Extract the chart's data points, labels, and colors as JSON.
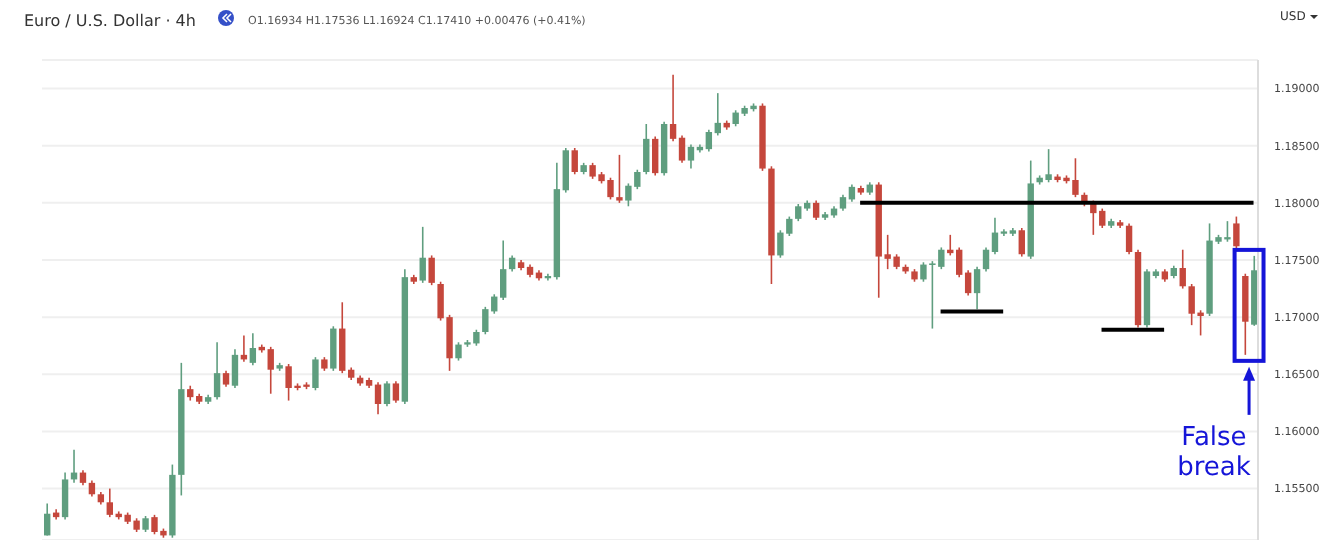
{
  "chart_data": {
    "type": "candlestick",
    "title": "Euro / U.S. Dollar · 4h",
    "ylabel": "USD",
    "annotations": [
      "O1.16934 H1.17536 L1.16924 C1.17410 +0.00476 (+0.41%)",
      "False break"
    ],
    "categories": [
      null,
      null,
      null,
      null,
      null,
      null,
      null,
      null,
      null,
      null,
      null,
      null,
      null,
      null,
      null,
      null,
      null,
      null,
      null,
      null,
      null,
      null,
      null,
      null,
      null,
      null,
      null,
      null,
      null,
      null,
      null,
      null,
      null,
      null,
      null,
      null,
      null,
      null,
      null,
      null,
      null,
      null,
      null,
      null,
      null,
      null,
      null,
      null,
      null,
      null,
      null,
      null,
      null,
      null,
      null,
      null,
      null,
      null,
      null,
      null,
      null,
      null,
      null,
      null,
      null,
      null,
      null,
      null,
      null,
      null,
      null,
      null,
      null,
      null,
      null,
      null,
      null,
      null,
      null,
      null,
      null,
      null,
      null,
      null,
      null,
      null,
      null,
      null,
      null,
      null,
      null,
      null,
      null,
      null,
      null,
      null,
      null,
      null,
      null,
      null,
      null,
      null,
      null,
      null,
      null,
      null,
      null,
      null,
      null,
      null,
      null,
      null,
      null,
      null,
      null,
      null,
      null,
      null,
      null,
      null,
      null,
      null,
      null,
      null,
      null,
      null,
      null,
      null,
      null,
      null,
      null,
      null,
      null,
      null,
      null,
      null
    ],
    "ohlc": [
      [
        1.1509,
        1.1537,
        1.1509,
        1.1528
      ],
      [
        1.1529,
        1.1532,
        1.1523,
        1.1525
      ],
      [
        1.1525,
        1.1564,
        1.1523,
        1.1558
      ],
      [
        1.1558,
        1.1584,
        1.1555,
        1.1564
      ],
      [
        1.1564,
        1.1566,
        1.1553,
        1.1555
      ],
      [
        1.1555,
        1.1557,
        1.1543,
        1.1545
      ],
      [
        1.1545,
        1.1547,
        1.1536,
        1.1538
      ],
      [
        1.1538,
        1.155,
        1.1525,
        1.1527
      ],
      [
        1.1528,
        1.153,
        1.1523,
        1.1525
      ],
      [
        1.1527,
        1.1529,
        1.1519,
        1.1521
      ],
      [
        1.1522,
        1.1524,
        1.1512,
        1.1514
      ],
      [
        1.1514,
        1.1526,
        1.1512,
        1.1524
      ],
      [
        1.1525,
        1.1527,
        1.151,
        1.1512
      ],
      [
        1.1513,
        1.1515,
        1.1507,
        1.1509
      ],
      [
        1.1509,
        1.1571,
        1.1507,
        1.1562
      ],
      [
        1.1562,
        1.166,
        1.1544,
        1.1637
      ],
      [
        1.1637,
        1.164,
        1.1627,
        1.163
      ],
      [
        1.1631,
        1.1633,
        1.1624,
        1.1626
      ],
      [
        1.1626,
        1.1632,
        1.1624,
        1.163
      ],
      [
        1.163,
        1.1678,
        1.1628,
        1.1651
      ],
      [
        1.1651,
        1.1653,
        1.1639,
        1.1641
      ],
      [
        1.164,
        1.1672,
        1.1638,
        1.1667
      ],
      [
        1.1667,
        1.1684,
        1.1661,
        1.1663
      ],
      [
        1.166,
        1.1686,
        1.1658,
        1.1673
      ],
      [
        1.1674,
        1.1676,
        1.1669,
        1.1671
      ],
      [
        1.1672,
        1.1674,
        1.1633,
        1.1654
      ],
      [
        1.1655,
        1.166,
        1.1653,
        1.1658
      ],
      [
        1.1657,
        1.1659,
        1.1627,
        1.1638
      ],
      [
        1.164,
        1.1642,
        1.1636,
        1.1638
      ],
      [
        1.1641,
        1.1643,
        1.1637,
        1.1639
      ],
      [
        1.1638,
        1.1665,
        1.1636,
        1.1663
      ],
      [
        1.1663,
        1.1665,
        1.1653,
        1.1655
      ],
      [
        1.1655,
        1.1692,
        1.1653,
        1.169
      ],
      [
        1.169,
        1.1713,
        1.1651,
        1.1653
      ],
      [
        1.1654,
        1.1656,
        1.1645,
        1.1647
      ],
      [
        1.1647,
        1.1649,
        1.164,
        1.1642
      ],
      [
        1.1645,
        1.1647,
        1.1638,
        1.164
      ],
      [
        1.1641,
        1.1643,
        1.1615,
        1.1624
      ],
      [
        1.1624,
        1.1644,
        1.1622,
        1.1642
      ],
      [
        1.1642,
        1.1644,
        1.1625,
        1.1627
      ],
      [
        1.1626,
        1.1742,
        1.1624,
        1.1735
      ],
      [
        1.1735,
        1.1737,
        1.1729,
        1.1731
      ],
      [
        1.1732,
        1.1779,
        1.173,
        1.1752
      ],
      [
        1.1752,
        1.1754,
        1.1728,
        1.173
      ],
      [
        1.1729,
        1.1731,
        1.1697,
        1.1699
      ],
      [
        1.17,
        1.1702,
        1.1653,
        1.1664
      ],
      [
        1.1664,
        1.1678,
        1.1662,
        1.1676
      ],
      [
        1.1676,
        1.168,
        1.1674,
        1.1678
      ],
      [
        1.1677,
        1.1689,
        1.1675,
        1.1687
      ],
      [
        1.1687,
        1.1709,
        1.1685,
        1.1707
      ],
      [
        1.1705,
        1.172,
        1.1703,
        1.1718
      ],
      [
        1.1717,
        1.1767,
        1.1715,
        1.1742
      ],
      [
        1.1742,
        1.1754,
        1.174,
        1.1752
      ],
      [
        1.1748,
        1.175,
        1.1741,
        1.1743
      ],
      [
        1.1744,
        1.1746,
        1.1735,
        1.1737
      ],
      [
        1.1739,
        1.1741,
        1.1732,
        1.1734
      ],
      [
        1.1734,
        1.1738,
        1.1732,
        1.1736
      ],
      [
        1.1735,
        1.1835,
        1.1733,
        1.1812
      ],
      [
        1.1811,
        1.1848,
        1.1809,
        1.1846
      ],
      [
        1.1846,
        1.1848,
        1.1825,
        1.1827
      ],
      [
        1.1827,
        1.1835,
        1.1825,
        1.1833
      ],
      [
        1.1833,
        1.1835,
        1.1821,
        1.1823
      ],
      [
        1.1825,
        1.1827,
        1.1817,
        1.1819
      ],
      [
        1.182,
        1.1822,
        1.1803,
        1.1805
      ],
      [
        1.1805,
        1.1842,
        1.18,
        1.1802
      ],
      [
        1.1802,
        1.1817,
        1.1797,
        1.1815
      ],
      [
        1.1814,
        1.1829,
        1.1812,
        1.1827
      ],
      [
        1.1827,
        1.1869,
        1.1825,
        1.1856
      ],
      [
        1.1856,
        1.1858,
        1.1824,
        1.1826
      ],
      [
        1.1826,
        1.1871,
        1.1824,
        1.1869
      ],
      [
        1.1869,
        1.1912,
        1.1854,
        1.1856
      ],
      [
        1.1857,
        1.1859,
        1.1835,
        1.1837
      ],
      [
        1.1837,
        1.1851,
        1.183,
        1.1849
      ],
      [
        1.1846,
        1.1851,
        1.1844,
        1.1849
      ],
      [
        1.1847,
        1.1864,
        1.1845,
        1.1862
      ],
      [
        1.1861,
        1.1896,
        1.1859,
        1.187
      ],
      [
        1.187,
        1.1872,
        1.1864,
        1.1866
      ],
      [
        1.1869,
        1.1881,
        1.1867,
        1.1879
      ],
      [
        1.1878,
        1.1885,
        1.1876,
        1.1883
      ],
      [
        1.1882,
        1.1887,
        1.188,
        1.1885
      ],
      [
        1.1885,
        1.1887,
        1.1828,
        1.183
      ],
      [
        1.183,
        1.1832,
        1.1729,
        1.1754
      ],
      [
        1.1754,
        1.1776,
        1.1752,
        1.1774
      ],
      [
        1.1773,
        1.1788,
        1.1771,
        1.1786
      ],
      [
        1.1786,
        1.1799,
        1.1784,
        1.1797
      ],
      [
        1.1795,
        1.1802,
        1.1793,
        1.18
      ],
      [
        1.18,
        1.1802,
        1.1785,
        1.1787
      ],
      [
        1.1787,
        1.1792,
        1.1785,
        1.179
      ],
      [
        1.1789,
        1.1797,
        1.1787,
        1.1795
      ],
      [
        1.1795,
        1.1807,
        1.1793,
        1.1805
      ],
      [
        1.1803,
        1.1816,
        1.1801,
        1.1814
      ],
      [
        1.1813,
        1.1815,
        1.1807,
        1.1809
      ],
      [
        1.1809,
        1.1818,
        1.1807,
        1.1816
      ],
      [
        1.1816,
        1.1818,
        1.1717,
        1.1753
      ],
      [
        1.1755,
        1.1772,
        1.1742,
        1.1751
      ],
      [
        1.1753,
        1.1755,
        1.1742,
        1.1744
      ],
      [
        1.1744,
        1.1746,
        1.1738,
        1.174
      ],
      [
        1.174,
        1.1742,
        1.1731,
        1.1733
      ],
      [
        1.1733,
        1.1748,
        1.1731,
        1.1746
      ],
      [
        1.1746,
        1.1749,
        1.169,
        1.1747
      ],
      [
        1.1744,
        1.1761,
        1.1742,
        1.1759
      ],
      [
        1.1759,
        1.1772,
        1.1754,
        1.1756
      ],
      [
        1.1759,
        1.1761,
        1.1735,
        1.1737
      ],
      [
        1.1739,
        1.1741,
        1.1719,
        1.1721
      ],
      [
        1.1721,
        1.1744,
        1.1707,
        1.1742
      ],
      [
        1.1742,
        1.1761,
        1.174,
        1.1759
      ],
      [
        1.1757,
        1.1787,
        1.1755,
        1.1774
      ],
      [
        1.1773,
        1.1777,
        1.1771,
        1.1775
      ],
      [
        1.1773,
        1.1778,
        1.1771,
        1.1776
      ],
      [
        1.1776,
        1.1778,
        1.1753,
        1.1755
      ],
      [
        1.1753,
        1.1837,
        1.1751,
        1.1817
      ],
      [
        1.1818,
        1.1824,
        1.1816,
        1.1822
      ],
      [
        1.182,
        1.1847,
        1.1818,
        1.1825
      ],
      [
        1.1823,
        1.1825,
        1.1818,
        1.182
      ],
      [
        1.1822,
        1.1824,
        1.1817,
        1.1819
      ],
      [
        1.182,
        1.1839,
        1.1805,
        1.1807
      ],
      [
        1.1807,
        1.1809,
        1.1797,
        1.1799
      ],
      [
        1.18,
        1.1802,
        1.1772,
        1.1791
      ],
      [
        1.1793,
        1.1795,
        1.1778,
        1.178
      ],
      [
        1.178,
        1.1786,
        1.1778,
        1.1784
      ],
      [
        1.1783,
        1.1785,
        1.1778,
        1.178
      ],
      [
        1.178,
        1.1782,
        1.1755,
        1.1757
      ],
      [
        1.1757,
        1.1759,
        1.1691,
        1.1693
      ],
      [
        1.1693,
        1.1742,
        1.1691,
        1.174
      ],
      [
        1.1736,
        1.1742,
        1.1734,
        1.174
      ],
      [
        1.174,
        1.1742,
        1.1731,
        1.1733
      ],
      [
        1.1736,
        1.1745,
        1.1734,
        1.1743
      ],
      [
        1.1743,
        1.1759,
        1.1725,
        1.1727
      ],
      [
        1.1727,
        1.1729,
        1.1693,
        1.1703
      ],
      [
        1.1704,
        1.1706,
        1.1684,
        1.1701
      ],
      [
        1.1703,
        1.1782,
        1.1701,
        1.1767
      ],
      [
        1.1766,
        1.1772,
        1.1764,
        1.177
      ],
      [
        1.1768,
        1.1784,
        1.1766,
        1.177
      ],
      [
        1.1782,
        1.1788,
        1.176,
        1.1762
      ],
      [
        1.1736,
        1.1738,
        1.1667,
        1.1696
      ],
      [
        1.16934,
        1.17536,
        1.16924,
        1.1741
      ]
    ],
    "series": [
      {
        "type": "line",
        "color": "#000000",
        "values": [
          null,
          null,
          null,
          null,
          null,
          null,
          null,
          null,
          null,
          null,
          null,
          null,
          null,
          null,
          null,
          null,
          null,
          null,
          null,
          null,
          null,
          null,
          null,
          null,
          null,
          null,
          null,
          null,
          null,
          null,
          null,
          null,
          null,
          null,
          null,
          null,
          null,
          null,
          null,
          null,
          null,
          null,
          null,
          null,
          null,
          null,
          null,
          null,
          null,
          null,
          null,
          null,
          null,
          null,
          null,
          null,
          null,
          null,
          null,
          null,
          null,
          null,
          null,
          null,
          null,
          null,
          null,
          null,
          null,
          null,
          null,
          null,
          null,
          null,
          null,
          null,
          null,
          null,
          null,
          null,
          null,
          null,
          null,
          null,
          null,
          null,
          null,
          null,
          null,
          null,
          null,
          1.18,
          1.18,
          1.18,
          1.18,
          1.18,
          1.18,
          1.18,
          1.18,
          1.18,
          1.18,
          1.18,
          1.18,
          1.18,
          1.18,
          1.18,
          1.18,
          1.18,
          1.18,
          1.18,
          1.18,
          1.18,
          1.18,
          1.18,
          1.18,
          1.18,
          1.18,
          1.18,
          1.18,
          1.18,
          1.18,
          1.18,
          1.18,
          1.18,
          1.18,
          1.18,
          1.18,
          1.18,
          1.18,
          1.18,
          1.18,
          1.18,
          1.18,
          1.18,
          1.18,
          1.18
        ]
      },
      {
        "type": "line",
        "color": "#000000",
        "values": [
          null,
          null,
          null,
          null,
          null,
          null,
          null,
          null,
          null,
          null,
          null,
          null,
          null,
          null,
          null,
          null,
          null,
          null,
          null,
          null,
          null,
          null,
          null,
          null,
          null,
          null,
          null,
          null,
          null,
          null,
          null,
          null,
          null,
          null,
          null,
          null,
          null,
          null,
          null,
          null,
          null,
          null,
          null,
          null,
          null,
          null,
          null,
          null,
          null,
          null,
          null,
          null,
          null,
          null,
          null,
          null,
          null,
          null,
          null,
          null,
          null,
          null,
          null,
          null,
          null,
          null,
          null,
          null,
          null,
          null,
          null,
          null,
          null,
          null,
          null,
          null,
          null,
          null,
          null,
          null,
          null,
          null,
          null,
          null,
          null,
          null,
          null,
          null,
          null,
          null,
          null,
          null,
          null,
          null,
          null,
          null,
          null,
          null,
          null,
          null,
          1.1705,
          1.1705,
          1.1705,
          1.1705,
          1.1705,
          1.1705,
          1.1705,
          1.1705,
          null,
          null,
          null,
          null,
          null,
          null,
          null,
          null,
          null,
          null,
          null,
          null,
          null,
          null,
          null,
          null,
          null,
          null,
          null,
          null,
          null,
          null,
          null,
          null,
          null,
          null,
          null,
          null
        ]
      },
      {
        "type": "line",
        "color": "#000000",
        "values": [
          null,
          null,
          null,
          null,
          null,
          null,
          null,
          null,
          null,
          null,
          null,
          null,
          null,
          null,
          null,
          null,
          null,
          null,
          null,
          null,
          null,
          null,
          null,
          null,
          null,
          null,
          null,
          null,
          null,
          null,
          null,
          null,
          null,
          null,
          null,
          null,
          null,
          null,
          null,
          null,
          null,
          null,
          null,
          null,
          null,
          null,
          null,
          null,
          null,
          null,
          null,
          null,
          null,
          null,
          null,
          null,
          null,
          null,
          null,
          null,
          null,
          null,
          null,
          null,
          null,
          null,
          null,
          null,
          null,
          null,
          null,
          null,
          null,
          null,
          null,
          null,
          null,
          null,
          null,
          null,
          null,
          null,
          null,
          null,
          null,
          null,
          null,
          null,
          null,
          null,
          null,
          null,
          null,
          null,
          null,
          null,
          null,
          null,
          null,
          null,
          null,
          null,
          null,
          null,
          null,
          null,
          null,
          null,
          null,
          null,
          null,
          null,
          null,
          null,
          null,
          null,
          null,
          null,
          1.1689,
          1.1689,
          1.1689,
          1.1689,
          1.1689,
          1.1689,
          1.1689,
          1.1689,
          null,
          null,
          null,
          null,
          null,
          null,
          null,
          null,
          null,
          null
        ]
      }
    ],
    "ylim": [
      1.1505,
      1.1925
    ],
    "yticks": [
      {
        "value": 1.155,
        "label": "1.15500"
      },
      {
        "value": 1.16,
        "label": "1.16000"
      },
      {
        "value": 1.165,
        "label": "1.16500"
      },
      {
        "value": 1.17,
        "label": "1.17000"
      },
      {
        "value": 1.175,
        "label": "1.17500"
      },
      {
        "value": 1.18,
        "label": "1.18000"
      },
      {
        "value": 1.185,
        "label": "1.18500"
      },
      {
        "value": 1.19,
        "label": "1.19000"
      }
    ],
    "grid": "y",
    "tick_labels": "y",
    "line_style": "solid"
  }
}
